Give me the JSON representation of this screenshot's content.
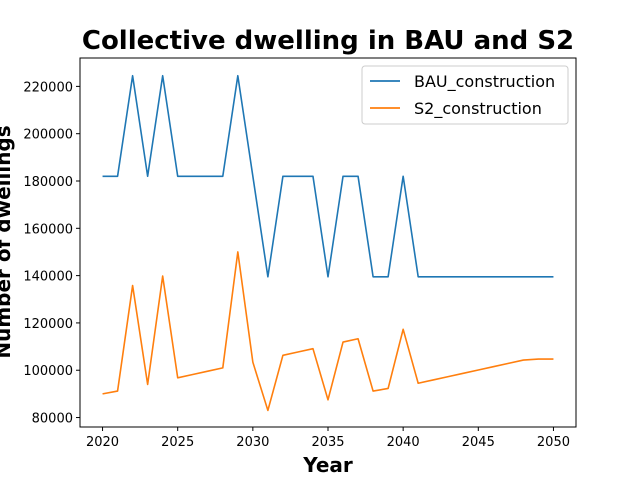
{
  "chart_data": {
    "type": "line",
    "title": "Collective dwelling in BAU and S2",
    "xlabel": "Year",
    "ylabel": "Number of dwellings",
    "xlim": [
      2018.5,
      2051.5
    ],
    "ylim": [
      76000,
      232000
    ],
    "xticks": [
      2020,
      2025,
      2030,
      2035,
      2040,
      2045,
      2050
    ],
    "yticks": [
      80000,
      100000,
      120000,
      140000,
      160000,
      180000,
      200000,
      220000
    ],
    "x": [
      2020,
      2021,
      2022,
      2023,
      2024,
      2025,
      2026,
      2027,
      2028,
      2029,
      2030,
      2031,
      2032,
      2033,
      2034,
      2035,
      2036,
      2037,
      2038,
      2039,
      2040,
      2041,
      2042,
      2043,
      2044,
      2045,
      2046,
      2047,
      2048,
      2049,
      2050
    ],
    "series": [
      {
        "name": "BAU_construction",
        "color": "#1f77b4",
        "values": [
          182000,
          182000,
          224500,
          182000,
          224500,
          182000,
          182000,
          182000,
          182000,
          224500,
          182000,
          139500,
          182000,
          182000,
          182000,
          139500,
          182000,
          182000,
          139500,
          139500,
          182000,
          139500,
          139500,
          139500,
          139500,
          139500,
          139500,
          139500,
          139500,
          139500,
          139500
        ]
      },
      {
        "name": "S2_construction",
        "color": "#ff7f0e",
        "values": [
          90000,
          91200,
          135800,
          94000,
          139800,
          96800,
          98200,
          99600,
          101000,
          150000,
          103400,
          83000,
          106300,
          107700,
          109100,
          87500,
          111900,
          113300,
          91200,
          92300,
          117300,
          94500,
          95900,
          97300,
          98700,
          100100,
          101500,
          102900,
          104300,
          104700,
          104700
        ]
      }
    ],
    "legend_position": "upper right",
    "grid": false
  }
}
